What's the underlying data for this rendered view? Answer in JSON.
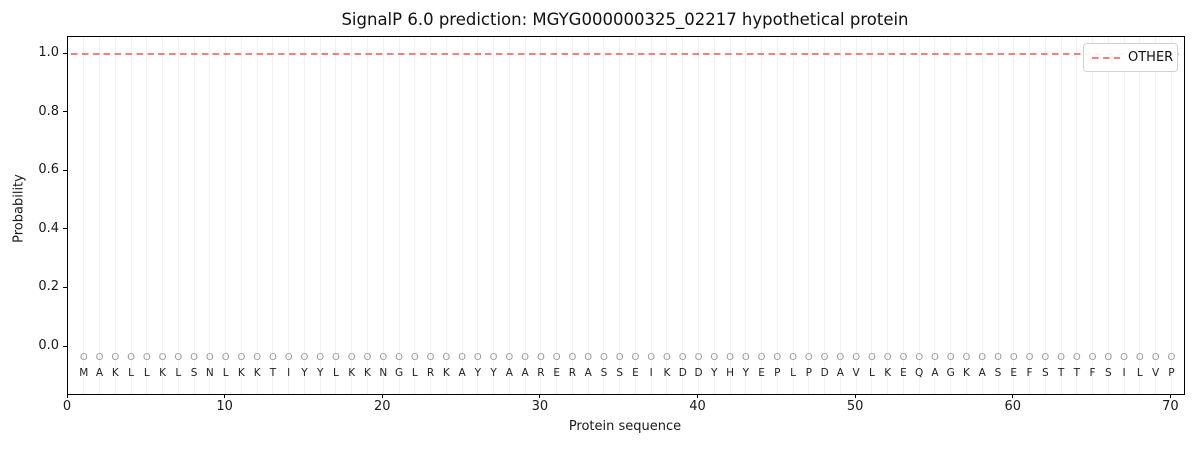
{
  "chart_data": {
    "type": "line",
    "title": "SignalP 6.0 prediction: MGYG000000325_02217 hypothetical protein",
    "xlabel": "Protein sequence",
    "ylabel": "Probability",
    "xlim": [
      0,
      70.8
    ],
    "ylim": [
      -0.16,
      1.06
    ],
    "x_ticks": [
      0,
      10,
      20,
      30,
      40,
      50,
      60,
      70
    ],
    "y_ticks": [
      "0.0",
      "0.2",
      "0.4",
      "0.6",
      "0.8",
      "1.0"
    ],
    "grid": {
      "vertical_per_residue": true,
      "horizontal": false
    },
    "legend": {
      "position": "upper right",
      "entries": [
        {
          "label": "OTHER",
          "style": "dashed",
          "color": "#f28080"
        }
      ]
    },
    "series": [
      {
        "name": "OTHER",
        "style": "dashed",
        "color": "#f28080",
        "x": [
          1,
          70
        ],
        "y": [
          1.0,
          1.0
        ],
        "note": "constant probability 1.0 across all 70 residues"
      }
    ],
    "sequence": "MAKLLKLSNLKKTIYYLKKNGLRKAYYAARERASSEIKDDYHYEPLPDAVLKEQAGKASEFSTTFSILVP",
    "per_residue_label": "O",
    "colors": {
      "line": "#f28080",
      "grid": "#efefef",
      "marker": "#9a9a9a",
      "sequence_text": "#1f1f1f",
      "axis": "#000000"
    }
  }
}
